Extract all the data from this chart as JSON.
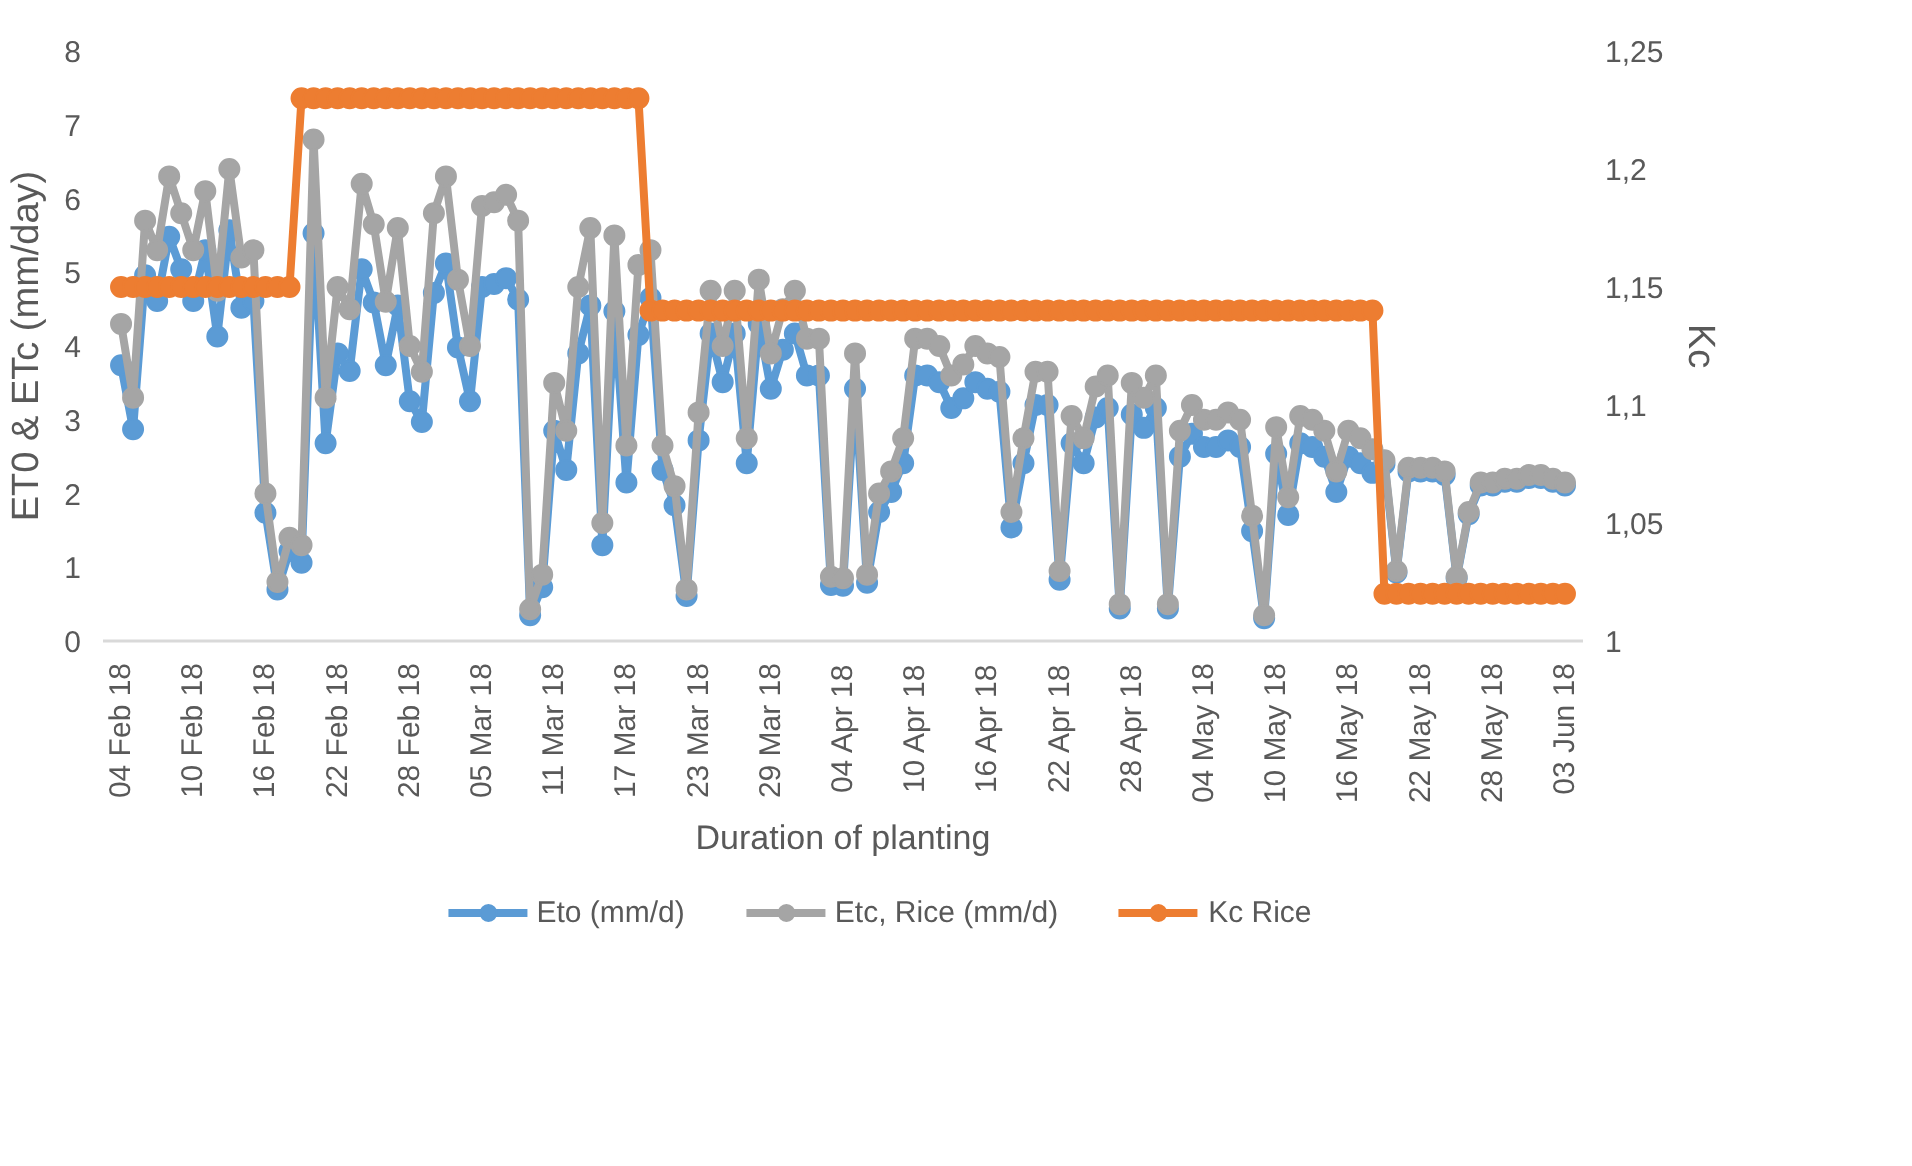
{
  "chart_data": {
    "type": "line",
    "xlabel": "Duration of planting",
    "ylabel": "ET0 & ETc (mm/day)",
    "y2label": "Kc",
    "categories": [
      "04 Feb 18",
      null,
      null,
      null,
      null,
      null,
      "10 Feb 18",
      null,
      null,
      null,
      null,
      null,
      "16 Feb 18",
      null,
      null,
      null,
      null,
      null,
      "22 Feb 18",
      null,
      null,
      null,
      null,
      null,
      "28 Feb 18",
      null,
      null,
      null,
      null,
      null,
      "05 Mar 18",
      null,
      null,
      null,
      null,
      null,
      "11 Mar 18",
      null,
      null,
      null,
      null,
      null,
      "17 Mar 18",
      null,
      null,
      null,
      null,
      null,
      "23 Mar 18",
      null,
      null,
      null,
      null,
      null,
      "29 Mar 18",
      null,
      null,
      null,
      null,
      null,
      "04 Apr 18",
      null,
      null,
      null,
      null,
      null,
      "10 Apr 18",
      null,
      null,
      null,
      null,
      null,
      "16 Apr 18",
      null,
      null,
      null,
      null,
      null,
      "22 Apr 18",
      null,
      null,
      null,
      null,
      null,
      "28 Apr 18",
      null,
      null,
      null,
      null,
      null,
      "04 May 18",
      null,
      null,
      null,
      null,
      null,
      "10 May 18",
      null,
      null,
      null,
      null,
      null,
      "16 May 18",
      null,
      null,
      null,
      null,
      null,
      "22 May 18",
      null,
      null,
      null,
      null,
      null,
      "28 May 18",
      null,
      null,
      null,
      null,
      null,
      "03 Jun 18"
    ],
    "series": [
      {
        "name": "Eto (mm/d)",
        "color": "#5b9bd5",
        "values": [
          3.74,
          2.87,
          4.96,
          4.61,
          5.48,
          5.04,
          4.61,
          5.3,
          4.13,
          5.57,
          4.52,
          4.61,
          1.74,
          0.7,
          1.22,
          1.06,
          5.53,
          2.68,
          3.9,
          3.66,
          5.04,
          4.59,
          3.74,
          4.55,
          3.25,
          2.97,
          4.72,
          5.12,
          3.98,
          3.25,
          4.8,
          4.84,
          4.92,
          4.63,
          0.35,
          0.73,
          2.85,
          2.32,
          3.9,
          4.55,
          1.3,
          4.47,
          2.15,
          4.15,
          4.65,
          2.32,
          1.84,
          0.61,
          2.72,
          4.17,
          3.51,
          4.17,
          2.41,
          4.3,
          3.42,
          3.95,
          4.17,
          3.6,
          3.6,
          0.76,
          0.75,
          3.42,
          0.79,
          1.75,
          2.02,
          2.41,
          3.6,
          3.6,
          3.51,
          3.16,
          3.29,
          3.51,
          3.42,
          3.38,
          1.54,
          2.41,
          3.2,
          3.2,
          0.83,
          2.68,
          2.41,
          3.03,
          3.16,
          0.44,
          3.07,
          2.89,
          3.16,
          0.44,
          2.5,
          2.81,
          2.63,
          2.63,
          2.72,
          2.63,
          1.49,
          0.31,
          2.54,
          1.71,
          2.68,
          2.63,
          2.5,
          2.02,
          2.5,
          2.41,
          2.28,
          2.4,
          0.93,
          2.3,
          2.3,
          2.3,
          2.25,
          0.85,
          1.72,
          2.11,
          2.11,
          2.16,
          2.16,
          2.21,
          2.21,
          2.16,
          2.11
        ]
      },
      {
        "name": "Etc, Rice (mm/d)",
        "color": "#a5a5a5",
        "values": [
          4.3,
          3.3,
          5.7,
          5.3,
          6.3,
          5.8,
          5.3,
          6.1,
          4.75,
          6.4,
          5.2,
          5.3,
          2.0,
          0.8,
          1.4,
          1.3,
          6.8,
          3.3,
          4.8,
          4.5,
          6.2,
          5.65,
          4.6,
          5.6,
          4.0,
          3.65,
          5.8,
          6.3,
          4.9,
          4.0,
          5.9,
          5.95,
          6.05,
          5.7,
          0.43,
          0.9,
          3.5,
          2.85,
          4.8,
          5.6,
          1.6,
          5.5,
          2.65,
          5.1,
          5.3,
          2.65,
          2.1,
          0.7,
          3.1,
          4.75,
          4.0,
          4.75,
          2.75,
          4.9,
          3.9,
          4.5,
          4.75,
          4.1,
          4.1,
          0.87,
          0.85,
          3.9,
          0.9,
          2.0,
          2.3,
          2.75,
          4.1,
          4.1,
          4.0,
          3.6,
          3.75,
          4.0,
          3.9,
          3.85,
          1.75,
          2.75,
          3.65,
          3.65,
          0.95,
          3.05,
          2.75,
          3.45,
          3.6,
          0.5,
          3.5,
          3.3,
          3.6,
          0.5,
          2.85,
          3.2,
          3.0,
          3.0,
          3.1,
          3.0,
          1.7,
          0.35,
          2.9,
          1.95,
          3.05,
          3.0,
          2.85,
          2.3,
          2.85,
          2.75,
          2.6,
          2.45,
          0.95,
          2.35,
          2.35,
          2.35,
          2.3,
          0.87,
          1.75,
          2.15,
          2.15,
          2.2,
          2.2,
          2.25,
          2.25,
          2.2,
          2.15
        ]
      },
      {
        "name": "Kc Rice",
        "color": "#ed7d31",
        "axis": "y2",
        "values": [
          1.15,
          1.15,
          1.15,
          1.15,
          1.15,
          1.15,
          1.15,
          1.15,
          1.15,
          1.15,
          1.15,
          1.15,
          1.15,
          1.15,
          1.15,
          1.23,
          1.23,
          1.23,
          1.23,
          1.23,
          1.23,
          1.23,
          1.23,
          1.23,
          1.23,
          1.23,
          1.23,
          1.23,
          1.23,
          1.23,
          1.23,
          1.23,
          1.23,
          1.23,
          1.23,
          1.23,
          1.23,
          1.23,
          1.23,
          1.23,
          1.23,
          1.23,
          1.23,
          1.23,
          1.14,
          1.14,
          1.14,
          1.14,
          1.14,
          1.14,
          1.14,
          1.14,
          1.14,
          1.14,
          1.14,
          1.14,
          1.14,
          1.14,
          1.14,
          1.14,
          1.14,
          1.14,
          1.14,
          1.14,
          1.14,
          1.14,
          1.14,
          1.14,
          1.14,
          1.14,
          1.14,
          1.14,
          1.14,
          1.14,
          1.14,
          1.14,
          1.14,
          1.14,
          1.14,
          1.14,
          1.14,
          1.14,
          1.14,
          1.14,
          1.14,
          1.14,
          1.14,
          1.14,
          1.14,
          1.14,
          1.14,
          1.14,
          1.14,
          1.14,
          1.14,
          1.14,
          1.14,
          1.14,
          1.14,
          1.14,
          1.14,
          1.14,
          1.14,
          1.14,
          1.14,
          1.02,
          1.02,
          1.02,
          1.02,
          1.02,
          1.02,
          1.02,
          1.02,
          1.02,
          1.02,
          1.02,
          1.02,
          1.02,
          1.02,
          1.02,
          1.02
        ]
      }
    ],
    "ylim": [
      0,
      8
    ],
    "yticks": [
      0,
      1,
      2,
      3,
      4,
      5,
      6,
      7,
      8
    ],
    "y2lim": [
      1,
      1.25
    ],
    "y2ticks": [
      1,
      {
        "value": 1.05,
        "label": "1,05"
      },
      {
        "value": 1.1,
        "label": "1,1"
      },
      {
        "value": 1.15,
        "label": "1,15"
      },
      {
        "value": 1.2,
        "label": "1,2"
      },
      {
        "value": 1.25,
        "label": "1,25"
      }
    ],
    "grid": false,
    "legend": "bottom",
    "marker": "circle",
    "line_style": "solid"
  }
}
